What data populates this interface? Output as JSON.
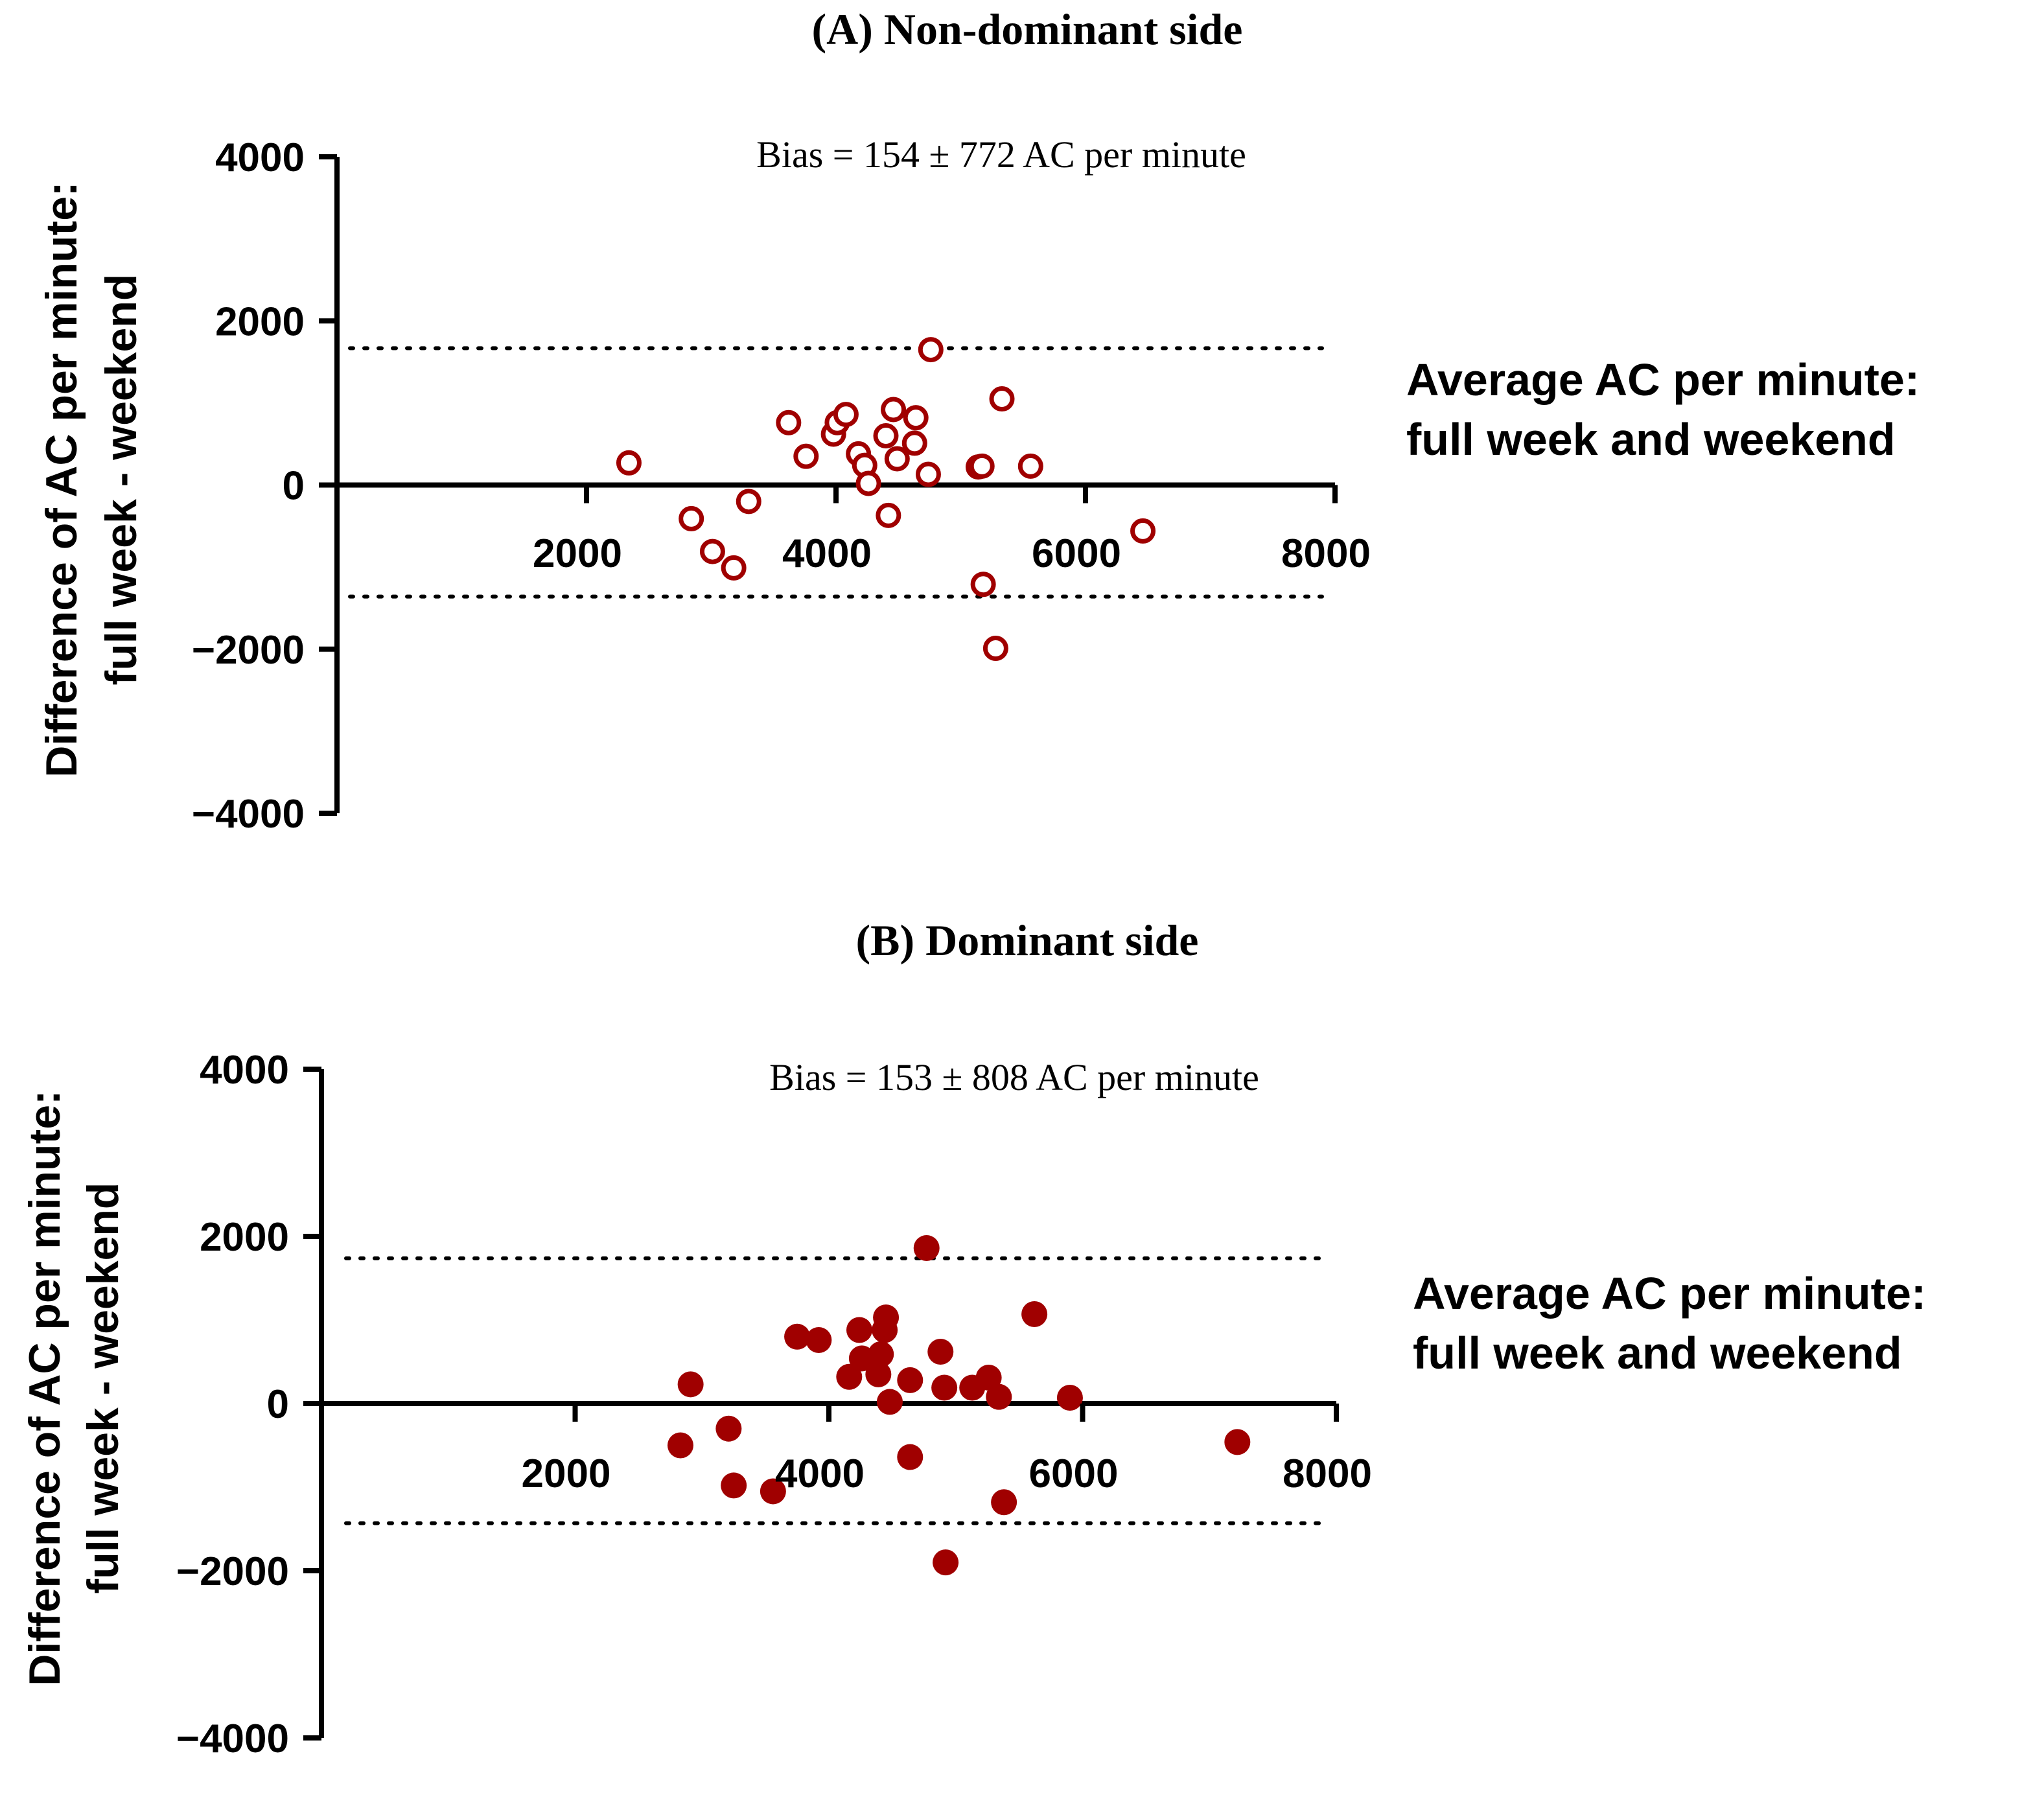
{
  "colors": {
    "marker": "#A00000",
    "axis": "#000000",
    "text": "#000000"
  },
  "chart_data": [
    {
      "type": "scatter",
      "title": "(A) Non-dominant side",
      "annotation": "Bias = 154 ± 772 AC per minute",
      "xlabel": [
        "Average AC per minute:",
        "full week and weekend"
      ],
      "ylabel": [
        "Difference of AC per minute:",
        "full week - weekend"
      ],
      "xlim": [
        0,
        8000
      ],
      "ylim": [
        -4000,
        4000
      ],
      "xticks": [
        2000,
        4000,
        6000,
        8000
      ],
      "xtick_labels": [
        "2000",
        "4000",
        "6000",
        "8000"
      ],
      "yticks": [
        4000,
        2000,
        0,
        -2000,
        -4000
      ],
      "ytick_labels": [
        "4000",
        "2000",
        "0",
        "−2000",
        "−4000"
      ],
      "marker": "open-circle",
      "bias": 154,
      "sd": 772,
      "loa": [
        1667,
        -1359
      ],
      "points": [
        [
          2340,
          270
        ],
        [
          2840,
          -410
        ],
        [
          3010,
          -810
        ],
        [
          3180,
          -1010
        ],
        [
          3300,
          -200
        ],
        [
          3620,
          760
        ],
        [
          3760,
          350
        ],
        [
          3980,
          620
        ],
        [
          4010,
          760
        ],
        [
          4080,
          860
        ],
        [
          4180,
          380
        ],
        [
          4230,
          240
        ],
        [
          4260,
          20
        ],
        [
          4400,
          600
        ],
        [
          4420,
          -370
        ],
        [
          4460,
          920
        ],
        [
          4490,
          320
        ],
        [
          4630,
          510
        ],
        [
          4640,
          820
        ],
        [
          4740,
          130
        ],
        [
          4760,
          1650
        ],
        [
          5140,
          220
        ],
        [
          5170,
          230
        ],
        [
          5180,
          -1210
        ],
        [
          5280,
          -1990
        ],
        [
          5330,
          1050
        ],
        [
          5560,
          230
        ],
        [
          6460,
          -560
        ]
      ]
    },
    {
      "type": "scatter",
      "title": "(B) Dominant side",
      "annotation": "Bias = 153 ± 808 AC per minute",
      "xlabel": [
        "Average AC per minute:",
        "full week and weekend"
      ],
      "ylabel": [
        "Difference of AC per minute:",
        "full week - weekend"
      ],
      "xlim": [
        0,
        8000
      ],
      "ylim": [
        -4000,
        4000
      ],
      "xticks": [
        2000,
        4000,
        6000,
        8000
      ],
      "xtick_labels": [
        "2000",
        "4000",
        "6000",
        "8000"
      ],
      "yticks": [
        4000,
        2000,
        0,
        -2000,
        -4000
      ],
      "ytick_labels": [
        "4000",
        "2000",
        "0",
        "−2000",
        "−4000"
      ],
      "marker": "filled-circle",
      "bias": 153,
      "sd": 808,
      "loa": [
        1737,
        -1431
      ],
      "points": [
        [
          2830,
          -500
        ],
        [
          2910,
          230
        ],
        [
          3210,
          -300
        ],
        [
          3250,
          -980
        ],
        [
          3560,
          -1050
        ],
        [
          3750,
          800
        ],
        [
          3920,
          760
        ],
        [
          4160,
          320
        ],
        [
          4240,
          880
        ],
        [
          4260,
          540
        ],
        [
          4390,
          350
        ],
        [
          4410,
          590
        ],
        [
          4440,
          880
        ],
        [
          4450,
          1030
        ],
        [
          4480,
          20
        ],
        [
          4640,
          280
        ],
        [
          4640,
          -640
        ],
        [
          4770,
          1860
        ],
        [
          4880,
          620
        ],
        [
          4910,
          190
        ],
        [
          4920,
          -1900
        ],
        [
          5130,
          190
        ],
        [
          5260,
          310
        ],
        [
          5340,
          80
        ],
        [
          5380,
          -1180
        ],
        [
          5620,
          1070
        ],
        [
          5900,
          70
        ],
        [
          7220,
          -460
        ]
      ]
    }
  ]
}
